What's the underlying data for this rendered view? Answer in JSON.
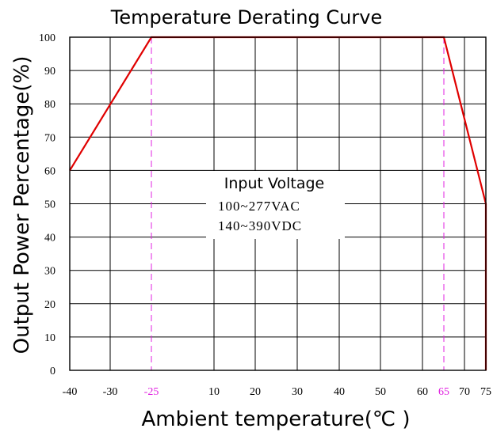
{
  "chart_data": {
    "type": "line",
    "title": "Temperature Derating Curve",
    "xlabel": "Ambient temperature(℃ )",
    "ylabel": "Output Power Percentage(%)",
    "xlim": [
      -40,
      75
    ],
    "ylim": [
      0,
      100
    ],
    "x_ticks": [
      -40,
      -30,
      -25,
      10,
      20,
      30,
      40,
      50,
      60,
      65,
      70,
      75
    ],
    "x_tick_labels": [
      "-40",
      "-30",
      "-25",
      "10",
      "20",
      "30",
      "40",
      "50",
      "60",
      "65",
      "70",
      "75"
    ],
    "x_highlight_ticks": [
      -25,
      65
    ],
    "y_ticks": [
      0,
      10,
      20,
      30,
      40,
      50,
      60,
      70,
      80,
      90,
      100
    ],
    "y_tick_labels": [
      "0",
      "10",
      "20",
      "30",
      "40",
      "50",
      "60",
      "70",
      "80",
      "90",
      "100"
    ],
    "grid": true,
    "series": [
      {
        "x": [
          -40,
          -25,
          65,
          75,
          75
        ],
        "y": [
          60,
          100,
          100,
          50,
          0
        ]
      }
    ],
    "reference_lines": [
      -25,
      65
    ],
    "annotation": {
      "heading": "Input Voltage",
      "lines": [
        "100~277VAC",
        "140~390VDC"
      ]
    },
    "colors": {
      "curve": "#e00000",
      "reference": "#e020e0",
      "grid": "#000000"
    }
  }
}
